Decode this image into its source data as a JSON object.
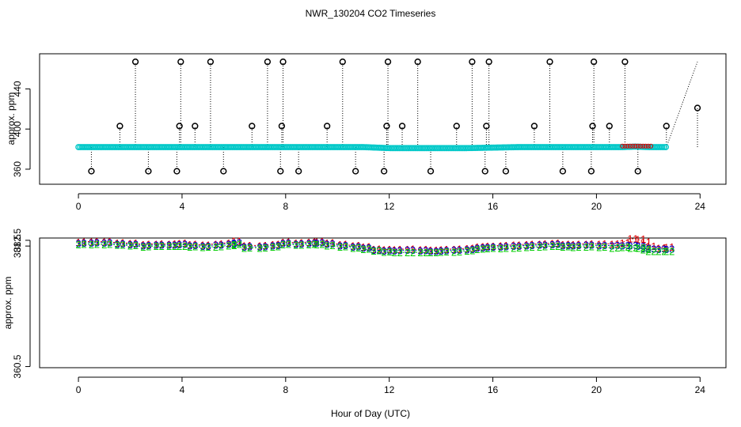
{
  "chart_data": [
    {
      "type": "scatter",
      "panel": "top",
      "title": "NWR_130204  CO2 Timeseries",
      "xlabel": "",
      "ylabel": "approx. ppm",
      "xlim": [
        -1.5,
        25
      ],
      "ylim": [
        345,
        475
      ],
      "xticks": [
        0,
        4,
        8,
        12,
        16,
        20,
        24
      ],
      "yticks": [
        360,
        400,
        440
      ],
      "grid": false,
      "colors": {
        "main": "#0000cc",
        "alt": "#00c8c8",
        "red": "#dd0000",
        "green": "#00bb00",
        "flag": "#000000"
      },
      "baseline": {
        "x": [
          0,
          1,
          2,
          3,
          4,
          5,
          6,
          7,
          8,
          9,
          10,
          11,
          12,
          13,
          14,
          15,
          16,
          17,
          18,
          19,
          20,
          21,
          21.5,
          22,
          22.7
        ],
        "y": [
          382,
          382,
          382,
          382,
          382,
          382,
          382,
          382,
          382,
          382,
          382,
          382,
          381,
          381,
          381,
          381,
          381.5,
          382,
          382,
          382,
          382,
          382,
          382.5,
          382,
          382
        ]
      },
      "outliers": {
        "x": [
          0.5,
          1.6,
          2.2,
          2.7,
          3.8,
          3.9,
          3.95,
          4.5,
          5.1,
          5.6,
          6.7,
          7.3,
          7.8,
          7.85,
          7.9,
          8.5,
          9.6,
          10.2,
          10.7,
          11.8,
          11.9,
          11.95,
          12.5,
          13.1,
          13.6,
          14.6,
          15.2,
          15.7,
          15.75,
          15.85,
          16.5,
          17.6,
          18.2,
          18.7,
          19.8,
          19.85,
          19.9,
          20.5,
          21.1,
          21.6,
          22.7,
          23.9
        ],
        "y": [
          358,
          403,
          467,
          358,
          358,
          403,
          467,
          403,
          467,
          358,
          403,
          467,
          358,
          403,
          467,
          358,
          403,
          467,
          358,
          358,
          403,
          467,
          403,
          467,
          358,
          403,
          467,
          358,
          403,
          467,
          358,
          403,
          467,
          358,
          358,
          403,
          467,
          403,
          467,
          358,
          403,
          421
        ]
      }
    },
    {
      "type": "line",
      "panel": "bottom",
      "xlabel": "Hour of Day (UTC)",
      "ylabel": "approx. ppm",
      "xlim": [
        -1.5,
        25
      ],
      "ylim": [
        360.3,
        382.9
      ],
      "xticks": [
        0,
        4,
        8,
        12,
        16,
        20,
        24
      ],
      "yticks": [
        360.5,
        381.5,
        382.5
      ],
      "ytick_labels": [
        "360.5",
        "381.5",
        "382.5"
      ],
      "grid": false,
      "series": [
        {
          "name": "1",
          "color": "#dd0000",
          "x": [
            0,
            0.5,
            1,
            1.5,
            2,
            2.5,
            3,
            3.5,
            3.9,
            4.3,
            4.8,
            5.3,
            5.8,
            6.0,
            6.4,
            7.0,
            7.5,
            7.9,
            8.4,
            8.9,
            9.2,
            9.6,
            10.1,
            10.6,
            11.0,
            11.4,
            11.8,
            12.2,
            12.7,
            13.2,
            13.6,
            14.0,
            14.5,
            15.0,
            15.4,
            15.8,
            16.3,
            16.8,
            17.3,
            17.8,
            18.3,
            18.7,
            19.1,
            19.6,
            20.1,
            20.6,
            21.0,
            21.3,
            21.6,
            21.8,
            22.0,
            22.4,
            22.7
          ],
          "y": [
            382.2,
            382.3,
            382.3,
            382.1,
            382.0,
            381.8,
            381.9,
            381.9,
            382.0,
            381.8,
            381.7,
            381.9,
            382.1,
            382.4,
            381.6,
            381.6,
            381.8,
            382.2,
            382.1,
            382.2,
            382.3,
            382.1,
            381.8,
            381.6,
            381.4,
            381.0,
            380.9,
            380.9,
            381.0,
            380.9,
            380.8,
            380.9,
            381.0,
            381.1,
            381.4,
            381.5,
            381.6,
            381.7,
            381.8,
            381.9,
            382.0,
            381.8,
            381.8,
            381.9,
            381.9,
            381.9,
            382.1,
            382.8,
            382.7,
            382.2,
            381.5,
            381.2,
            381.3
          ]
        },
        {
          "name": "3",
          "color": "#0000cc",
          "x": [
            0,
            0.5,
            1,
            1.5,
            2,
            2.5,
            3,
            3.5,
            3.9,
            4.3,
            4.8,
            5.3,
            5.8,
            6.0,
            6.4,
            7.0,
            7.5,
            7.9,
            8.4,
            8.9,
            9.2,
            9.6,
            10.1,
            10.6,
            11.0,
            11.4,
            11.8,
            12.2,
            12.7,
            13.2,
            13.6,
            14.0,
            14.5,
            15.0,
            15.4,
            15.8,
            16.3,
            16.8,
            17.3,
            17.8,
            18.3,
            18.7,
            19.1,
            19.6,
            20.1,
            20.6,
            21.0,
            21.3,
            21.6,
            21.8,
            22.0,
            22.4,
            22.7
          ],
          "y": [
            382.0,
            382.1,
            382.1,
            381.9,
            381.8,
            381.6,
            381.7,
            381.7,
            381.8,
            381.6,
            381.5,
            381.7,
            381.9,
            382.1,
            381.4,
            381.4,
            381.6,
            382.0,
            381.9,
            382.0,
            382.1,
            381.9,
            381.6,
            381.4,
            381.2,
            380.8,
            380.7,
            380.7,
            380.8,
            380.7,
            380.6,
            380.7,
            380.8,
            380.9,
            381.2,
            381.3,
            381.4,
            381.5,
            381.6,
            381.7,
            381.8,
            381.6,
            381.6,
            381.7,
            381.6,
            381.6,
            381.6,
            381.6,
            381.5,
            381.1,
            381.0,
            381.0,
            381.0
          ]
        },
        {
          "name": "2",
          "color": "#00cc00",
          "x": [
            0,
            0.5,
            1,
            1.5,
            2,
            2.5,
            3,
            3.5,
            3.9,
            4.3,
            4.8,
            5.3,
            5.8,
            6.0,
            6.4,
            7.0,
            7.5,
            7.9,
            8.4,
            8.9,
            9.2,
            9.6,
            10.1,
            10.6,
            11.0,
            11.4,
            11.8,
            12.2,
            12.7,
            13.2,
            13.6,
            14.0,
            14.5,
            15.0,
            15.4,
            15.8,
            16.3,
            16.8,
            17.3,
            17.8,
            18.3,
            18.7,
            19.1,
            19.6,
            20.1,
            20.6,
            21.0,
            21.3,
            21.6,
            21.8,
            22.0,
            22.4,
            22.7
          ],
          "y": [
            381.8,
            381.8,
            381.8,
            381.7,
            381.6,
            381.4,
            381.5,
            381.5,
            381.5,
            381.4,
            381.3,
            381.4,
            381.6,
            381.8,
            381.2,
            381.2,
            381.4,
            381.8,
            381.7,
            381.8,
            381.8,
            381.6,
            381.4,
            381.2,
            381.0,
            380.7,
            380.5,
            380.4,
            380.4,
            380.4,
            380.4,
            380.5,
            380.5,
            380.7,
            381.0,
            381.1,
            381.1,
            381.2,
            381.3,
            381.4,
            381.5,
            381.4,
            381.3,
            381.4,
            381.3,
            381.2,
            381.3,
            381.2,
            381.2,
            380.9,
            380.6,
            380.6,
            380.6
          ]
        }
      ]
    }
  ]
}
